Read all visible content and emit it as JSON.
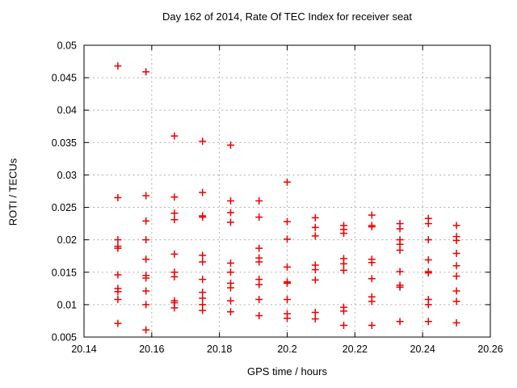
{
  "chart_data": {
    "type": "scatter",
    "title": "Day 162 of 2014, Rate Of TEC Index for receiver seat",
    "xlabel": "GPS time / hours",
    "ylabel": "ROTI / TECUs",
    "xlim": [
      20.14,
      20.26
    ],
    "ylim": [
      0.005,
      0.05
    ],
    "xticks": [
      20.14,
      20.16,
      20.18,
      20.2,
      20.22,
      20.24,
      20.26
    ],
    "xtick_labels": [
      "20.14",
      "20.16",
      "20.18",
      "20.2",
      "20.22",
      "20.24",
      "20.26"
    ],
    "yticks": [
      0.005,
      0.01,
      0.015,
      0.02,
      0.025,
      0.03,
      0.035,
      0.04,
      0.045,
      0.05
    ],
    "ytick_labels": [
      "0.005",
      "0.01",
      "0.015",
      "0.02",
      "0.025",
      "0.03",
      "0.035",
      "0.04",
      "0.045",
      "0.05"
    ],
    "grid": true,
    "legend": "none",
    "marker": {
      "shape": "plus",
      "color": "#ee0000",
      "size": 9,
      "stroke_width": 1.5
    },
    "colors": {
      "grid": "#b0b0b0",
      "axis": "#000000",
      "background": "#ffffff",
      "text": "#000000"
    },
    "series": [
      {
        "name": "ROTI",
        "points": [
          [
            20.15,
            0.0468
          ],
          [
            20.15,
            0.0265
          ],
          [
            20.15,
            0.02
          ],
          [
            20.15,
            0.019
          ],
          [
            20.15,
            0.0187
          ],
          [
            20.15,
            0.0146
          ],
          [
            20.15,
            0.0125
          ],
          [
            20.15,
            0.012
          ],
          [
            20.15,
            0.0108
          ],
          [
            20.15,
            0.0071
          ],
          [
            20.1583,
            0.0459
          ],
          [
            20.1583,
            0.0268
          ],
          [
            20.1583,
            0.0229
          ],
          [
            20.1583,
            0.02
          ],
          [
            20.1583,
            0.017
          ],
          [
            20.1583,
            0.0145
          ],
          [
            20.1583,
            0.0141
          ],
          [
            20.1583,
            0.0121
          ],
          [
            20.1583,
            0.01
          ],
          [
            20.1583,
            0.0061
          ],
          [
            20.1667,
            0.036
          ],
          [
            20.1667,
            0.0266
          ],
          [
            20.1667,
            0.0241
          ],
          [
            20.1667,
            0.0231
          ],
          [
            20.1667,
            0.0178
          ],
          [
            20.1667,
            0.015
          ],
          [
            20.1667,
            0.0143
          ],
          [
            20.1667,
            0.0106
          ],
          [
            20.1667,
            0.0103
          ],
          [
            20.1667,
            0.0095
          ],
          [
            20.175,
            0.0352
          ],
          [
            20.175,
            0.0273
          ],
          [
            20.175,
            0.0237
          ],
          [
            20.175,
            0.0235
          ],
          [
            20.175,
            0.0176
          ],
          [
            20.175,
            0.0166
          ],
          [
            20.175,
            0.0139
          ],
          [
            20.175,
            0.0119
          ],
          [
            20.175,
            0.011
          ],
          [
            20.175,
            0.01
          ],
          [
            20.175,
            0.0091
          ],
          [
            20.1833,
            0.0346
          ],
          [
            20.1833,
            0.026
          ],
          [
            20.1833,
            0.0242
          ],
          [
            20.1833,
            0.0227
          ],
          [
            20.1833,
            0.0164
          ],
          [
            20.1833,
            0.015
          ],
          [
            20.1833,
            0.0133
          ],
          [
            20.1833,
            0.0126
          ],
          [
            20.1833,
            0.0106
          ],
          [
            20.1833,
            0.0089
          ],
          [
            20.1917,
            0.026
          ],
          [
            20.1917,
            0.0235
          ],
          [
            20.1917,
            0.0187
          ],
          [
            20.1917,
            0.0172
          ],
          [
            20.1917,
            0.0166
          ],
          [
            20.1917,
            0.0139
          ],
          [
            20.1917,
            0.0131
          ],
          [
            20.1917,
            0.0108
          ],
          [
            20.1917,
            0.0083
          ],
          [
            20.2,
            0.0289
          ],
          [
            20.2,
            0.0228
          ],
          [
            20.2,
            0.0201
          ],
          [
            20.2,
            0.0158
          ],
          [
            20.2,
            0.0135
          ],
          [
            20.2,
            0.0133
          ],
          [
            20.2,
            0.0108
          ],
          [
            20.2,
            0.0086
          ],
          [
            20.2,
            0.0079
          ],
          [
            20.2083,
            0.0234
          ],
          [
            20.2083,
            0.0219
          ],
          [
            20.2083,
            0.0206
          ],
          [
            20.2083,
            0.0161
          ],
          [
            20.2083,
            0.0154
          ],
          [
            20.2083,
            0.0138
          ],
          [
            20.2083,
            0.0088
          ],
          [
            20.2083,
            0.0078
          ],
          [
            20.2167,
            0.0222
          ],
          [
            20.2167,
            0.0216
          ],
          [
            20.2167,
            0.021
          ],
          [
            20.2167,
            0.0171
          ],
          [
            20.2167,
            0.0163
          ],
          [
            20.2167,
            0.0153
          ],
          [
            20.2167,
            0.0096
          ],
          [
            20.2167,
            0.009
          ],
          [
            20.2167,
            0.0068
          ],
          [
            20.225,
            0.0238
          ],
          [
            20.225,
            0.0222
          ],
          [
            20.225,
            0.022
          ],
          [
            20.225,
            0.017
          ],
          [
            20.225,
            0.0165
          ],
          [
            20.225,
            0.014
          ],
          [
            20.225,
            0.0112
          ],
          [
            20.225,
            0.0105
          ],
          [
            20.225,
            0.0068
          ],
          [
            20.2333,
            0.0225
          ],
          [
            20.2333,
            0.0217
          ],
          [
            20.2333,
            0.02
          ],
          [
            20.2333,
            0.0193
          ],
          [
            20.2333,
            0.0184
          ],
          [
            20.2333,
            0.0151
          ],
          [
            20.2333,
            0.013
          ],
          [
            20.2333,
            0.0127
          ],
          [
            20.2333,
            0.0074
          ],
          [
            20.2417,
            0.0233
          ],
          [
            20.2417,
            0.0225
          ],
          [
            20.2417,
            0.02
          ],
          [
            20.2417,
            0.0169
          ],
          [
            20.2417,
            0.0151
          ],
          [
            20.2417,
            0.0149
          ],
          [
            20.2417,
            0.0108
          ],
          [
            20.2417,
            0.01
          ],
          [
            20.2417,
            0.0074
          ],
          [
            20.25,
            0.0222
          ],
          [
            20.25,
            0.0205
          ],
          [
            20.25,
            0.0199
          ],
          [
            20.25,
            0.0179
          ],
          [
            20.25,
            0.016
          ],
          [
            20.25,
            0.0144
          ],
          [
            20.25,
            0.0121
          ],
          [
            20.25,
            0.0105
          ],
          [
            20.25,
            0.0072
          ]
        ]
      }
    ]
  }
}
